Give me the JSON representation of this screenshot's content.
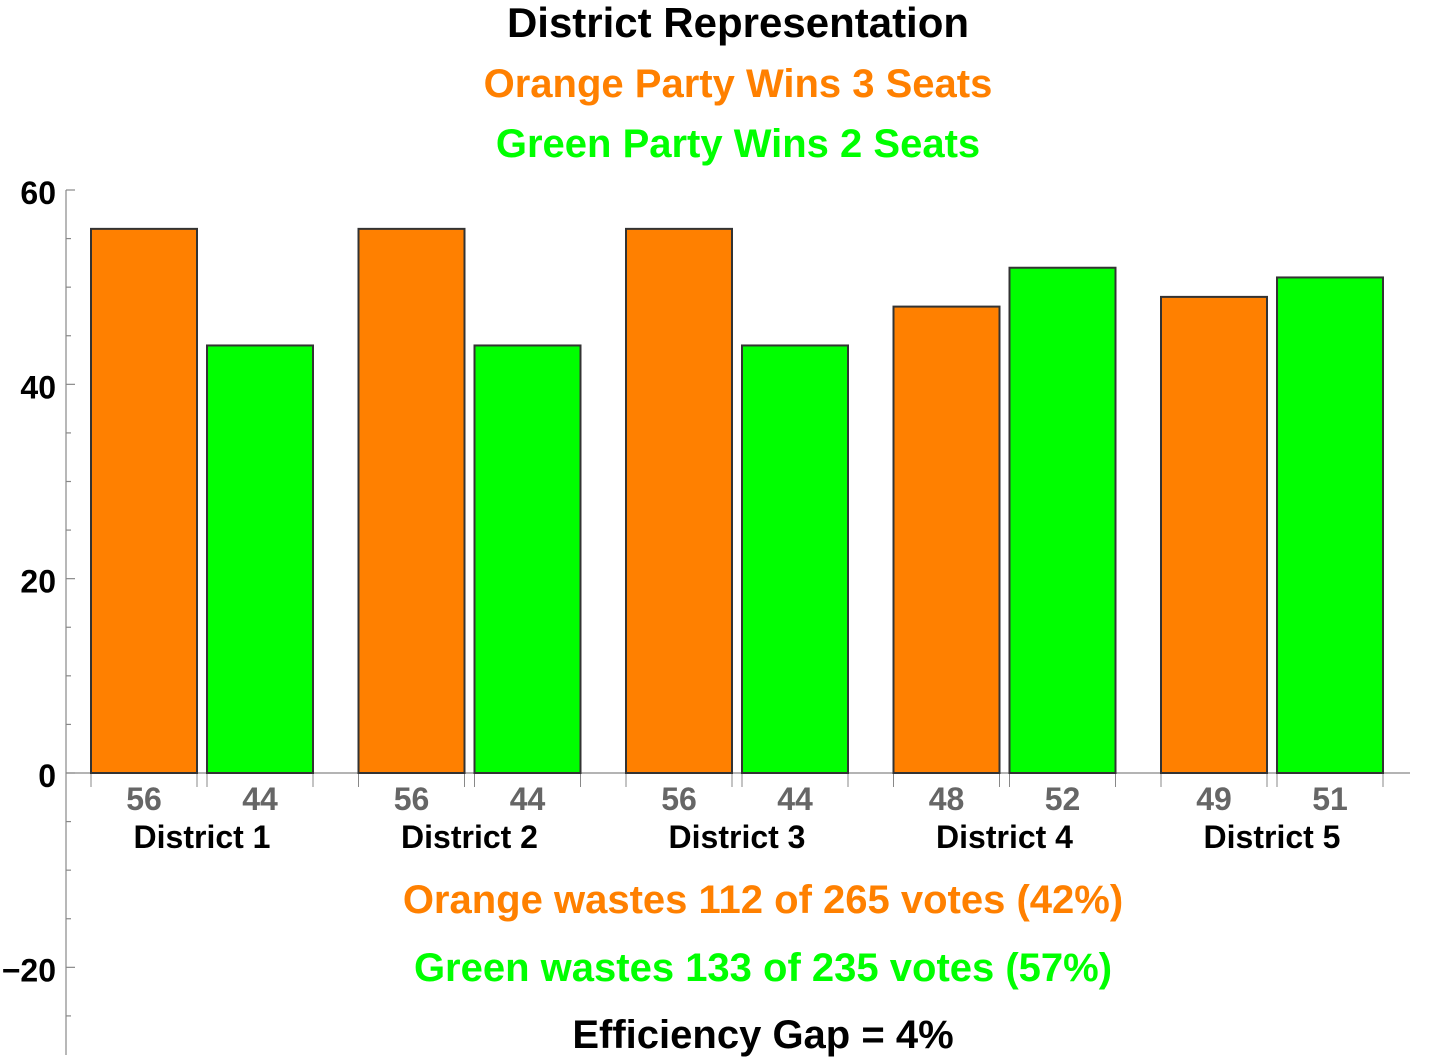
{
  "colors": {
    "orange": "#FF8000",
    "green": "#00FF00",
    "title": "#000000",
    "value_label": "#666666",
    "bar_stroke": "#333333",
    "axis": "#888888"
  },
  "chart_data": {
    "type": "bar",
    "title": "District Representation",
    "subtitles": [
      {
        "text": "Orange Party Wins 3 Seats",
        "color": "#FF8000"
      },
      {
        "text": "Green Party Wins 2 Seats",
        "color": "#00FF00"
      }
    ],
    "categories": [
      "District 1",
      "District 2",
      "District 3",
      "District 4",
      "District 5"
    ],
    "series": [
      {
        "color": "#FF8000",
        "values": [
          56,
          56,
          56,
          48,
          49
        ]
      },
      {
        "color": "#00FF00",
        "values": [
          44,
          44,
          44,
          52,
          51
        ]
      }
    ],
    "ylim": [
      -29,
      60
    ],
    "yticks": [
      -20,
      0,
      20,
      40,
      60
    ],
    "ytick_labels": [
      "−20",
      "0",
      "20",
      "40",
      "60"
    ],
    "minor_tick_step": 5,
    "bar_value_labels": true,
    "grid": false,
    "annotations": [
      {
        "text": "Orange wastes 112 of 265 votes (42%)",
        "color": "#FF8000"
      },
      {
        "text": "Green wastes 133 of 235 votes (57%)",
        "color": "#00FF00"
      },
      {
        "text": "Efficiency Gap = 4%",
        "color": "#000000"
      }
    ]
  }
}
